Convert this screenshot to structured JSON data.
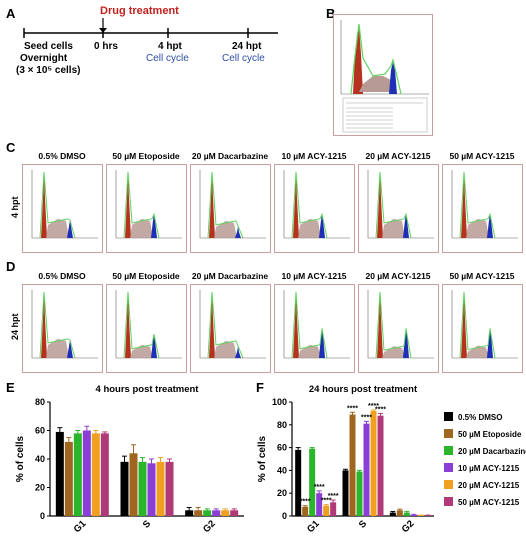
{
  "panels": {
    "A": "A",
    "B": "B",
    "C": "C",
    "D": "D",
    "E": "E",
    "F": "F"
  },
  "timeline": {
    "drug_treatment": "Drug treatment",
    "seed_line1": "Seed cells",
    "seed_line2": "Overnight",
    "seed_line3": "(3 × 10⁵ cells)",
    "t0": "0 hrs",
    "t4": "4 hpt",
    "t24": "24 hpt",
    "cell_cycle_4": "Cell cycle",
    "cell_cycle_24": "Cell cycle"
  },
  "histo_titles": [
    "0.5% DMSO",
    "50 µM Etoposide",
    "20 µM Dacarbazine",
    "10 µM ACY-1215",
    "20 µM ACY-1215",
    "50 µM ACY-1215"
  ],
  "row_labels": {
    "c": "4 hpt",
    "d": "24 hpt"
  },
  "colors": {
    "g1": "#b5321e",
    "s": "#b89a94",
    "g2": "#1f2fb5",
    "fit": "#5fd35f",
    "border": "#c9a0a0"
  },
  "chart_data": [
    {
      "type": "bar",
      "title": "4 hours post treatment",
      "ylabel": "% of cells",
      "ylim": [
        0,
        80
      ],
      "yticks": [
        0,
        20,
        40,
        60,
        80
      ],
      "categories": [
        "G1",
        "S",
        "G2"
      ],
      "series": [
        {
          "name": "0.5% DMSO",
          "color": "#000000",
          "values": [
            59,
            38,
            4
          ],
          "errors": [
            3,
            4,
            2
          ]
        },
        {
          "name": "50 µM Etoposide",
          "color": "#a0651f",
          "values": [
            52,
            44,
            4
          ],
          "errors": [
            3,
            6,
            2
          ]
        },
        {
          "name": "20 µM Dacarbazine",
          "color": "#2bb52b",
          "values": [
            58,
            38,
            4
          ],
          "errors": [
            2,
            3,
            1
          ]
        },
        {
          "name": "10 µM ACY-1215",
          "color": "#8b3ed6",
          "values": [
            60,
            37,
            4
          ],
          "errors": [
            3,
            3,
            1
          ]
        },
        {
          "name": "20 µM ACY-1215",
          "color": "#f0a020",
          "values": [
            58,
            38,
            4
          ],
          "errors": [
            2,
            3,
            1
          ]
        },
        {
          "name": "50 µM ACY-1215",
          "color": "#b03a78",
          "values": [
            58,
            38,
            4
          ],
          "errors": [
            1,
            2,
            1
          ]
        }
      ]
    },
    {
      "type": "bar",
      "title": "24 hours post treatment",
      "ylabel": "% of cells",
      "ylim": [
        0,
        100
      ],
      "yticks": [
        0,
        20,
        40,
        60,
        80,
        100
      ],
      "categories": [
        "G1",
        "S",
        "G2"
      ],
      "series": [
        {
          "name": "0.5% DMSO",
          "color": "#000000",
          "values": [
            58,
            40,
            3
          ],
          "errors": [
            2,
            1,
            1
          ]
        },
        {
          "name": "50 µM Etoposide",
          "color": "#a0651f",
          "values": [
            8,
            89,
            5
          ],
          "errors": [
            1,
            2,
            1
          ]
        },
        {
          "name": "20 µM Dacarbazine",
          "color": "#2bb52b",
          "values": [
            59,
            39,
            3
          ],
          "errors": [
            1,
            1,
            1
          ]
        },
        {
          "name": "10 µM ACY-1215",
          "color": "#8b3ed6",
          "values": [
            20,
            81,
            1
          ],
          "errors": [
            2,
            2,
            0.5
          ]
        },
        {
          "name": "20 µM ACY-1215",
          "color": "#f0a020",
          "values": [
            9,
            92,
            0.5
          ],
          "errors": [
            1,
            1,
            0.3
          ]
        },
        {
          "name": "50 µM ACY-1215",
          "color": "#b03a78",
          "values": [
            12,
            88,
            0.5
          ],
          "errors": [
            2,
            2,
            0.3
          ]
        }
      ],
      "significance": [
        {
          "series": 1,
          "category": 0,
          "text": "****"
        },
        {
          "series": 3,
          "category": 0,
          "text": "****"
        },
        {
          "series": 4,
          "category": 0,
          "text": "****"
        },
        {
          "series": 5,
          "category": 0,
          "text": "****"
        },
        {
          "series": 1,
          "category": 1,
          "text": "****"
        },
        {
          "series": 3,
          "category": 1,
          "text": "****"
        },
        {
          "series": 4,
          "category": 1,
          "text": "****"
        },
        {
          "series": 5,
          "category": 1,
          "text": "****"
        }
      ]
    }
  ]
}
